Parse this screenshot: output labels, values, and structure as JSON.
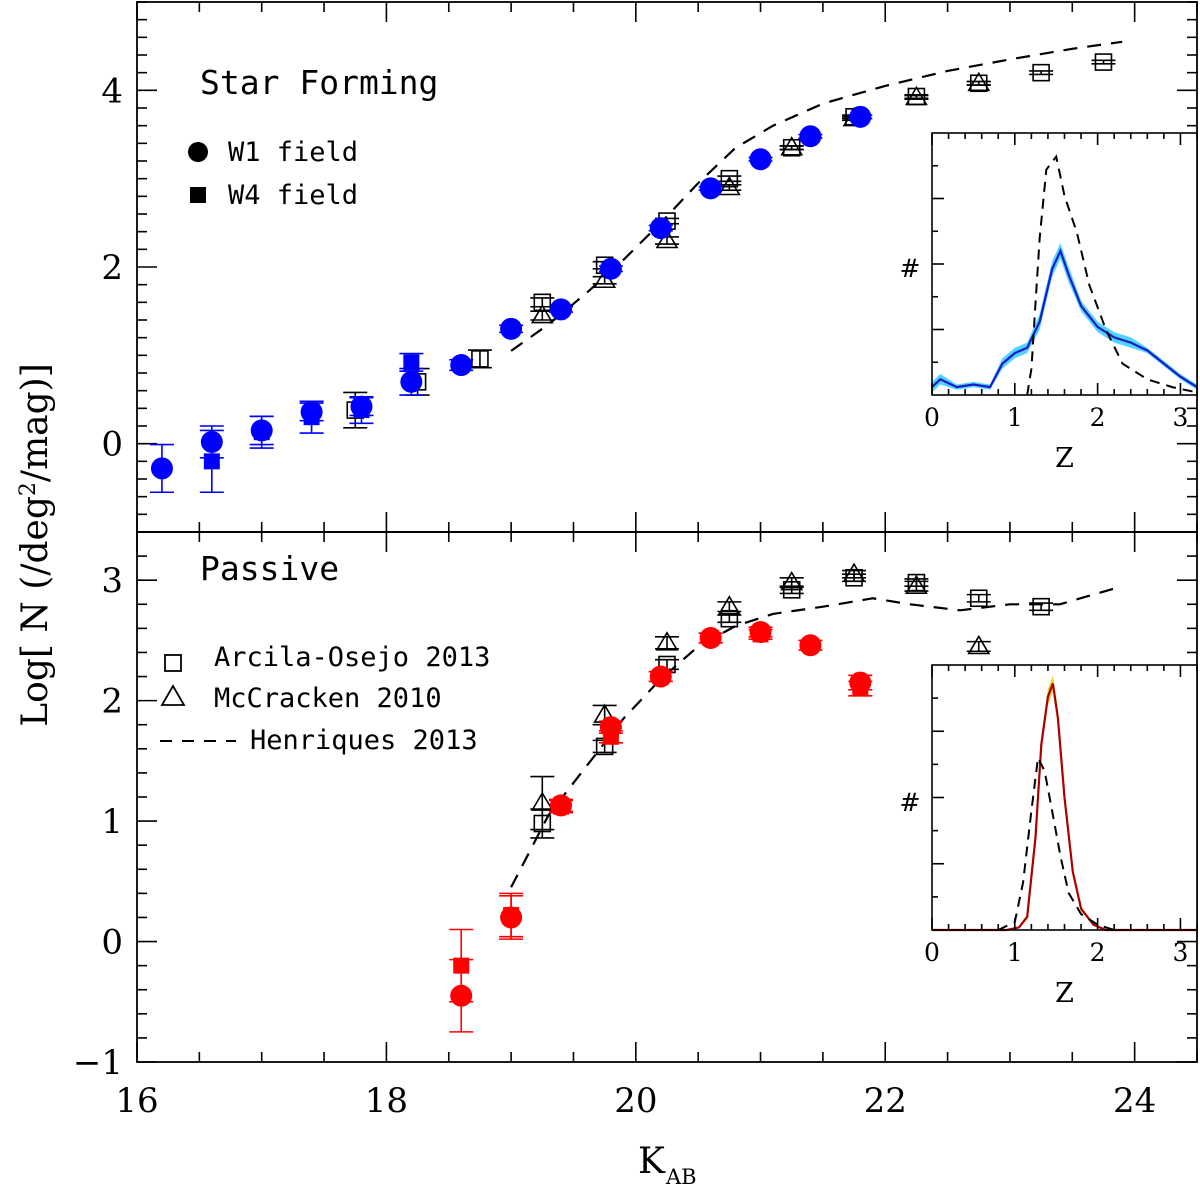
{
  "figure": {
    "y_label_main": "Log[ N (/deg",
    "y_label_sup": "2",
    "y_label_tail": "/mag)]",
    "x_label_main": "K",
    "x_label_sub": "AB"
  },
  "chart_data": [
    {
      "id": "star-forming",
      "type": "scatter",
      "title": "Star Forming",
      "xlabel": "K_AB",
      "ylabel": "Log[ N (/deg²/mag)]",
      "xlim": [
        16,
        24.5
      ],
      "ylim": [
        -1,
        5
      ],
      "xticks": [
        16,
        18,
        20,
        22,
        24
      ],
      "yticks": [
        0,
        2,
        4
      ],
      "color": "#0000ff",
      "legend": [
        {
          "symbol": "filled-circle",
          "label": "W1 field"
        },
        {
          "symbol": "filled-square",
          "label": "W4 field"
        }
      ],
      "series": [
        {
          "name": "W1 field",
          "marker": "circle",
          "x": [
            16.2,
            16.6,
            17.0,
            17.4,
            17.8,
            18.2,
            18.6,
            19.0,
            19.4,
            19.8,
            20.2,
            20.6,
            21.0,
            21.4,
            21.8
          ],
          "y": [
            -0.28,
            0.02,
            0.15,
            0.36,
            0.42,
            0.7,
            0.89,
            1.3,
            1.52,
            1.98,
            2.44,
            2.89,
            3.22,
            3.48,
            3.7
          ],
          "err": [
            0.27,
            0.18,
            0.16,
            0.1,
            0.1,
            0.15,
            0.06,
            0.04,
            0.03,
            0.03,
            0.03,
            0.02,
            0.02,
            0.02,
            0.02
          ]
        },
        {
          "name": "W4 field",
          "marker": "square",
          "x": [
            16.6,
            17.0,
            17.4,
            17.8,
            18.2
          ],
          "y": [
            -0.2,
            0.13,
            0.3,
            0.38,
            0.92
          ],
          "err": [
            0.35,
            0.18,
            0.18,
            0.15,
            0.1
          ]
        },
        {
          "name": "Arcila-Osejo 2013",
          "marker": "open-square",
          "x": [
            17.75,
            18.25,
            18.75,
            19.25,
            19.75,
            20.25,
            20.75,
            21.25,
            21.75,
            22.25,
            22.75,
            23.25,
            23.75
          ],
          "y": [
            0.38,
            0.7,
            0.96,
            1.6,
            2.02,
            2.52,
            3.0,
            3.35,
            3.7,
            3.93,
            4.08,
            4.2,
            4.32
          ],
          "err": [
            0.2,
            0.15,
            0.1,
            0.05,
            0.04,
            0.03,
            0.03,
            0.02,
            0.02,
            0.02,
            0.02,
            0.02,
            0.02
          ]
        },
        {
          "name": "McCracken 2010",
          "marker": "open-triangle",
          "x": [
            19.25,
            19.75,
            20.25,
            20.75,
            21.25,
            21.75,
            22.25,
            22.75
          ],
          "y": [
            1.45,
            1.85,
            2.3,
            2.9,
            3.35,
            3.68,
            3.92,
            4.08
          ],
          "err": [
            0.05,
            0.04,
            0.04,
            0.03,
            0.02,
            0.02,
            0.02,
            0.02
          ]
        }
      ],
      "model": {
        "name": "Henriques 2013",
        "style": "dashed",
        "x": [
          19.0,
          19.3,
          19.6,
          19.9,
          20.2,
          20.5,
          20.8,
          21.1,
          21.5,
          22.0,
          22.5,
          23.0,
          23.5,
          23.9
        ],
        "y": [
          1.05,
          1.35,
          1.7,
          2.08,
          2.5,
          2.95,
          3.35,
          3.6,
          3.85,
          4.05,
          4.22,
          4.35,
          4.47,
          4.55
        ]
      },
      "inset": {
        "xlabel": "Z",
        "ylabel": "#",
        "xlim": [
          0,
          3.2
        ],
        "ylim": [
          0,
          1
        ],
        "xticks": [
          0,
          1,
          2,
          3
        ],
        "curve_x": [
          0,
          0.1,
          0.3,
          0.5,
          0.7,
          0.85,
          1.0,
          1.15,
          1.3,
          1.45,
          1.55,
          1.65,
          1.8,
          2.0,
          2.2,
          2.4,
          2.6,
          2.8,
          3.0,
          3.2
        ],
        "curve_y": [
          0.03,
          0.06,
          0.03,
          0.04,
          0.03,
          0.12,
          0.16,
          0.18,
          0.28,
          0.48,
          0.55,
          0.46,
          0.34,
          0.26,
          0.22,
          0.2,
          0.17,
          0.12,
          0.07,
          0.03
        ],
        "band": [
          0.02,
          0.02,
          0.01,
          0.01,
          0.01,
          0.02,
          0.02,
          0.02,
          0.03,
          0.03,
          0.03,
          0.03,
          0.02,
          0.02,
          0.02,
          0.02,
          0.01,
          0.01,
          0.01,
          0.01
        ],
        "model_x": [
          1.15,
          1.2,
          1.25,
          1.3,
          1.38,
          1.5,
          1.6,
          1.75,
          1.9,
          2.1,
          2.3,
          2.6,
          2.9,
          3.2
        ],
        "model_y": [
          0.0,
          0.1,
          0.35,
          0.6,
          0.86,
          0.91,
          0.76,
          0.62,
          0.42,
          0.25,
          0.12,
          0.06,
          0.03,
          0.01
        ],
        "line_color": "#1a1acc",
        "fill_color": "#33ccff"
      }
    },
    {
      "id": "passive",
      "type": "scatter",
      "title": "Passive",
      "xlabel": "K_AB",
      "ylabel": "Log[ N (/deg²/mag)]",
      "xlim": [
        16,
        24.5
      ],
      "ylim": [
        -1,
        3.4
      ],
      "xticks": [
        16,
        18,
        20,
        22,
        24
      ],
      "yticks": [
        -1,
        0,
        1,
        2,
        3
      ],
      "color": "#ff0000",
      "legend": [
        {
          "symbol": "open-square",
          "label": "Arcila-Osejo 2013"
        },
        {
          "symbol": "open-triangle",
          "label": "McCracken 2010"
        },
        {
          "symbol": "dash",
          "label": "Henriques 2013"
        }
      ],
      "series": [
        {
          "name": "W1 field",
          "marker": "circle",
          "x": [
            18.6,
            19.0,
            19.4,
            19.8,
            20.2,
            20.6,
            21.0,
            21.4,
            21.8
          ],
          "y": [
            -0.45,
            0.2,
            1.13,
            1.78,
            2.2,
            2.52,
            2.57,
            2.46,
            2.15
          ],
          "err": [
            0.3,
            0.18,
            0.05,
            0.05,
            0.04,
            0.04,
            0.04,
            0.04,
            0.06
          ]
        },
        {
          "name": "W4 field",
          "marker": "square",
          "x": [
            18.6,
            19.0,
            19.4,
            19.8,
            20.2,
            20.6,
            21.0,
            21.8
          ],
          "y": [
            -0.2,
            0.22,
            1.12,
            1.7,
            2.2,
            2.52,
            2.55,
            2.1
          ],
          "err": [
            0.3,
            0.18,
            0.05,
            0.05,
            0.04,
            0.04,
            0.04,
            0.06
          ]
        },
        {
          "name": "Arcila-Osejo 2013",
          "marker": "open-square",
          "x": [
            19.25,
            19.75,
            20.25,
            20.75,
            21.25,
            21.75,
            22.25,
            22.75,
            23.25
          ],
          "y": [
            0.98,
            1.62,
            2.3,
            2.68,
            2.92,
            3.02,
            2.98,
            2.85,
            2.78
          ],
          "err": [
            0.12,
            0.05,
            0.04,
            0.03,
            0.03,
            0.03,
            0.03,
            0.03,
            0.03
          ]
        },
        {
          "name": "McCracken 2010",
          "marker": "open-triangle",
          "x": [
            19.25,
            19.75,
            20.25,
            20.75,
            21.25,
            21.75,
            22.25,
            22.75
          ],
          "y": [
            1.15,
            1.88,
            2.48,
            2.78,
            2.98,
            3.05,
            2.95,
            2.45
          ],
          "err": [
            0.22,
            0.08,
            0.05,
            0.04,
            0.04,
            0.03,
            0.04,
            0.04
          ]
        }
      ],
      "model": {
        "name": "Henriques 2013",
        "style": "dashed",
        "x": [
          19.0,
          19.3,
          19.6,
          19.9,
          20.2,
          20.5,
          20.8,
          21.1,
          21.5,
          21.9,
          22.2,
          22.6,
          23.0,
          23.4,
          23.9
        ],
        "y": [
          0.45,
          1.05,
          1.45,
          1.85,
          2.18,
          2.45,
          2.62,
          2.72,
          2.78,
          2.85,
          2.8,
          2.75,
          2.8,
          2.8,
          2.95
        ]
      },
      "inset": {
        "xlabel": "Z",
        "ylabel": "#",
        "xlim": [
          0,
          3.2
        ],
        "ylim": [
          0,
          1
        ],
        "xticks": [
          0,
          1,
          2,
          3
        ],
        "curve_x": [
          0,
          0.6,
          0.9,
          1.05,
          1.15,
          1.25,
          1.32,
          1.4,
          1.46,
          1.52,
          1.6,
          1.7,
          1.8,
          1.95,
          2.1,
          2.4,
          3.2
        ],
        "curve_y": [
          0,
          0,
          0.0,
          0.01,
          0.05,
          0.35,
          0.7,
          0.88,
          0.93,
          0.8,
          0.5,
          0.22,
          0.08,
          0.02,
          0.0,
          0,
          0
        ],
        "band": [
          0,
          0,
          0,
          0,
          0.01,
          0.02,
          0.03,
          0.03,
          0.03,
          0.03,
          0.02,
          0.02,
          0.01,
          0,
          0,
          0,
          0
        ],
        "model_x": [
          0.8,
          1.0,
          1.1,
          1.2,
          1.28,
          1.36,
          1.45,
          1.55,
          1.65,
          1.8,
          2.0,
          2.2
        ],
        "model_y": [
          0.0,
          0.03,
          0.18,
          0.45,
          0.65,
          0.6,
          0.45,
          0.28,
          0.14,
          0.06,
          0.02,
          0.0
        ],
        "line_color": "#aa0000",
        "fill_color": "#ddcc00"
      }
    }
  ]
}
